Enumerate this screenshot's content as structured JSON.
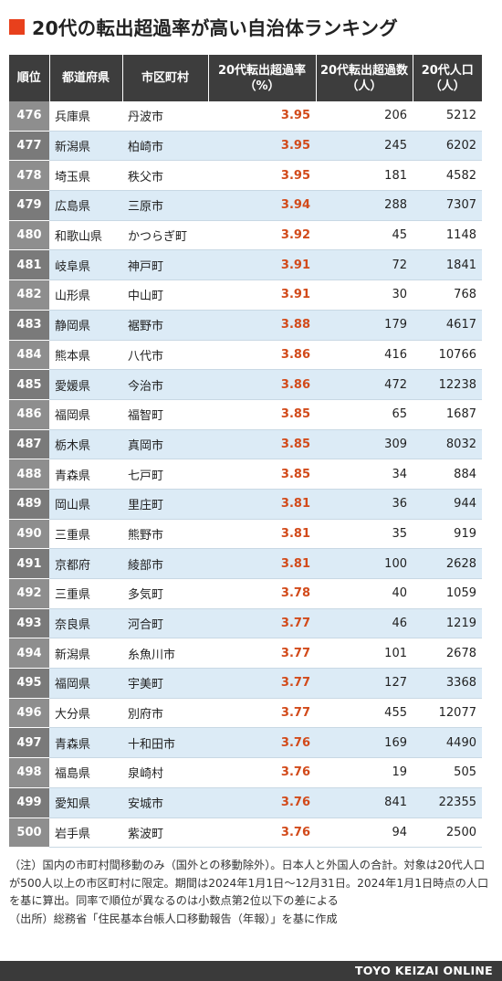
{
  "title": "20代の転出超過率が高い自治体ランキング",
  "headers": {
    "rank": "順位",
    "prefecture": "都道府県",
    "city": "市区町村",
    "rate_line1": "20代転出超過率",
    "rate_line2": "（%）",
    "excess_line1": "20代転出超過数",
    "excess_line2": "（人）",
    "pop_line1": "20代人口",
    "pop_line2": "（人）"
  },
  "rows": [
    {
      "rank": "476",
      "pref": "兵庫県",
      "city": "丹波市",
      "rate": "3.95",
      "excess": "206",
      "pop": "5212"
    },
    {
      "rank": "477",
      "pref": "新潟県",
      "city": "柏崎市",
      "rate": "3.95",
      "excess": "245",
      "pop": "6202"
    },
    {
      "rank": "478",
      "pref": "埼玉県",
      "city": "秩父市",
      "rate": "3.95",
      "excess": "181",
      "pop": "4582"
    },
    {
      "rank": "479",
      "pref": "広島県",
      "city": "三原市",
      "rate": "3.94",
      "excess": "288",
      "pop": "7307"
    },
    {
      "rank": "480",
      "pref": "和歌山県",
      "city": "かつらぎ町",
      "rate": "3.92",
      "excess": "45",
      "pop": "1148"
    },
    {
      "rank": "481",
      "pref": "岐阜県",
      "city": "神戸町",
      "rate": "3.91",
      "excess": "72",
      "pop": "1841"
    },
    {
      "rank": "482",
      "pref": "山形県",
      "city": "中山町",
      "rate": "3.91",
      "excess": "30",
      "pop": "768"
    },
    {
      "rank": "483",
      "pref": "静岡県",
      "city": "裾野市",
      "rate": "3.88",
      "excess": "179",
      "pop": "4617"
    },
    {
      "rank": "484",
      "pref": "熊本県",
      "city": "八代市",
      "rate": "3.86",
      "excess": "416",
      "pop": "10766"
    },
    {
      "rank": "485",
      "pref": "愛媛県",
      "city": "今治市",
      "rate": "3.86",
      "excess": "472",
      "pop": "12238"
    },
    {
      "rank": "486",
      "pref": "福岡県",
      "city": "福智町",
      "rate": "3.85",
      "excess": "65",
      "pop": "1687"
    },
    {
      "rank": "487",
      "pref": "栃木県",
      "city": "真岡市",
      "rate": "3.85",
      "excess": "309",
      "pop": "8032"
    },
    {
      "rank": "488",
      "pref": "青森県",
      "city": "七戸町",
      "rate": "3.85",
      "excess": "34",
      "pop": "884"
    },
    {
      "rank": "489",
      "pref": "岡山県",
      "city": "里庄町",
      "rate": "3.81",
      "excess": "36",
      "pop": "944"
    },
    {
      "rank": "490",
      "pref": "三重県",
      "city": "熊野市",
      "rate": "3.81",
      "excess": "35",
      "pop": "919"
    },
    {
      "rank": "491",
      "pref": "京都府",
      "city": "綾部市",
      "rate": "3.81",
      "excess": "100",
      "pop": "2628"
    },
    {
      "rank": "492",
      "pref": "三重県",
      "city": "多気町",
      "rate": "3.78",
      "excess": "40",
      "pop": "1059"
    },
    {
      "rank": "493",
      "pref": "奈良県",
      "city": "河合町",
      "rate": "3.77",
      "excess": "46",
      "pop": "1219"
    },
    {
      "rank": "494",
      "pref": "新潟県",
      "city": "糸魚川市",
      "rate": "3.77",
      "excess": "101",
      "pop": "2678"
    },
    {
      "rank": "495",
      "pref": "福岡県",
      "city": "宇美町",
      "rate": "3.77",
      "excess": "127",
      "pop": "3368"
    },
    {
      "rank": "496",
      "pref": "大分県",
      "city": "別府市",
      "rate": "3.77",
      "excess": "455",
      "pop": "12077"
    },
    {
      "rank": "497",
      "pref": "青森県",
      "city": "十和田市",
      "rate": "3.76",
      "excess": "169",
      "pop": "4490"
    },
    {
      "rank": "498",
      "pref": "福島県",
      "city": "泉崎村",
      "rate": "3.76",
      "excess": "19",
      "pop": "505"
    },
    {
      "rank": "499",
      "pref": "愛知県",
      "city": "安城市",
      "rate": "3.76",
      "excess": "841",
      "pop": "22355"
    },
    {
      "rank": "500",
      "pref": "岩手県",
      "city": "紫波町",
      "rate": "3.76",
      "excess": "94",
      "pop": "2500"
    }
  ],
  "notes": {
    "note": "（注）国内の市町村間移動のみ（国外との移動除外）。日本人と外国人の合計。対象は20代人口が500人以上の市区町村に限定。期間は2024年1月1日～12月31日。2024年1月1日時点の人口を基に算出。同率で順位が異なるのは小数点第2位以下の差による",
    "source": "（出所）総務省「住民基本台帳人口移動報告（年報）」を基に作成"
  },
  "footer": {
    "brand": "TOYO KEIZAI ONLINE"
  },
  "colors": {
    "accent": "#e8401c",
    "header_bg": "#3d3d3d",
    "rate_text": "#d24a1a",
    "stripe": "#dcebf6"
  }
}
